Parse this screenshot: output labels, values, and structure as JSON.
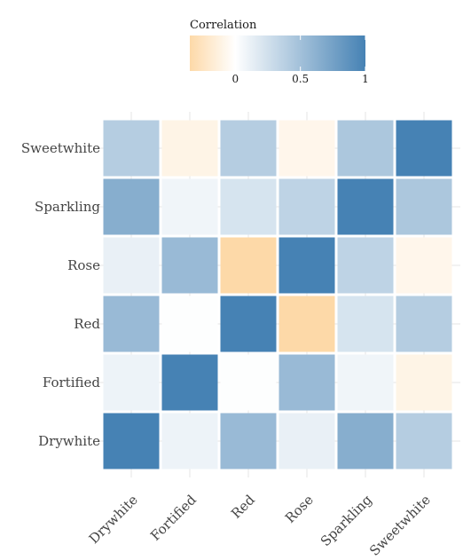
{
  "chart_data": {
    "type": "heatmap",
    "legend": {
      "title": "Correlation",
      "min": -0.35,
      "max": 1,
      "ticks": [
        {
          "value": 0,
          "label": "0"
        },
        {
          "value": 0.5,
          "label": "0.5"
        },
        {
          "value": 1,
          "label": "1"
        }
      ],
      "low_color": "#fdd9a8",
      "mid_color": "#ffffff",
      "high_color": "#4682b4",
      "placement": "top"
    },
    "x_categories": [
      "Drywhite",
      "Fortified",
      "Red",
      "Rose",
      "Sparkling",
      "Sweetwhite"
    ],
    "y_categories": [
      "Drywhite",
      "Fortified",
      "Red",
      "Rose",
      "Sparkling",
      "Sweetwhite"
    ],
    "values": [
      [
        1.0,
        0.1,
        0.55,
        0.12,
        0.65,
        0.4
      ],
      [
        0.1,
        1.0,
        0.01,
        0.55,
        0.08,
        -0.1
      ],
      [
        0.55,
        0.01,
        1.0,
        -0.35,
        0.22,
        0.4
      ],
      [
        0.12,
        0.55,
        -0.35,
        1.0,
        0.35,
        -0.08
      ],
      [
        0.65,
        0.08,
        0.22,
        0.35,
        1.0,
        0.45
      ],
      [
        0.4,
        -0.1,
        0.4,
        -0.08,
        0.45,
        1.0
      ]
    ],
    "grid": true
  }
}
